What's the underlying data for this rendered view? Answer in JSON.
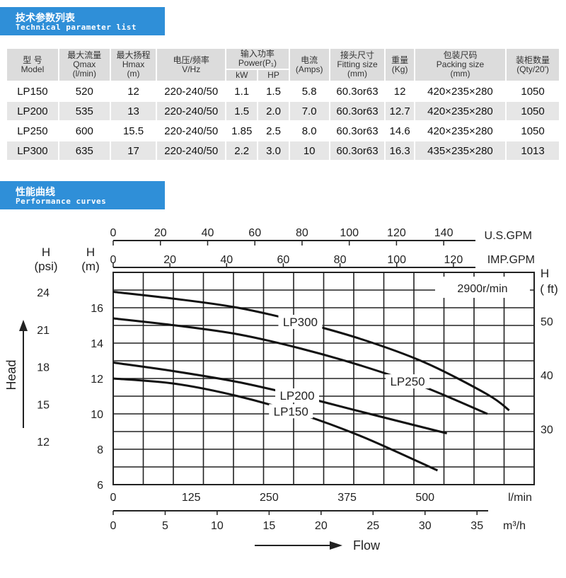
{
  "sections": {
    "tech": {
      "cn": "技术参数列表",
      "en": "Technical parameter list"
    },
    "perf": {
      "cn": "性能曲线",
      "en": "Performance curves"
    }
  },
  "table": {
    "headers": {
      "model": {
        "cn": "型 号",
        "en": "Model"
      },
      "qmax": {
        "cn": "最大流量",
        "l2": "Qmax",
        "l3": "(l/min)"
      },
      "hmax": {
        "cn": "最大扬程",
        "l2": "Hmax",
        "l3": "(m)"
      },
      "voltage": {
        "cn": "电压/频率",
        "en": "V/Hz"
      },
      "power": {
        "cn": "输入功率",
        "en": "Power(P₁)",
        "kw": "kW",
        "hp": "HP"
      },
      "current": {
        "cn": "电流",
        "en": "(Amps)"
      },
      "fitting": {
        "cn": "接头尺寸",
        "en": "Fitting size",
        "unit": "(mm)"
      },
      "weight": {
        "cn": "重量",
        "en": "(Kg)"
      },
      "packing": {
        "cn": "包装尺码",
        "en": "Packing size",
        "unit": "(mm)"
      },
      "container": {
        "cn": "装柜数量",
        "en": "(Qty/20')"
      }
    },
    "rows": [
      {
        "model": "LP150",
        "qmax": "520",
        "hmax": "12",
        "voltage": "220-240/50",
        "kw": "1.1",
        "hp": "1.5",
        "amps": "5.8",
        "fitting": "60.3or63",
        "kg": "12",
        "packing": "420×235×280",
        "qty": "1050"
      },
      {
        "model": "LP200",
        "qmax": "535",
        "hmax": "13",
        "voltage": "220-240/50",
        "kw": "1.5",
        "hp": "2.0",
        "amps": "7.0",
        "fitting": "60.3or63",
        "kg": "12.7",
        "packing": "420×235×280",
        "qty": "1050"
      },
      {
        "model": "LP250",
        "qmax": "600",
        "hmax": "15.5",
        "voltage": "220-240/50",
        "kw": "1.85",
        "hp": "2.5",
        "amps": "8.0",
        "fitting": "60.3or63",
        "kg": "14.6",
        "packing": "420×235×280",
        "qty": "1050"
      },
      {
        "model": "LP300",
        "qmax": "635",
        "hmax": "17",
        "voltage": "220-240/50",
        "kw": "2.2",
        "hp": "3.0",
        "amps": "10",
        "fitting": "60.3or63",
        "kg": "16.3",
        "packing": "435×235×280",
        "qty": "1013"
      }
    ]
  },
  "chart_data": {
    "type": "line",
    "annotation": "2900r/min",
    "x_label": "l/min",
    "xlim": [
      0,
      675
    ],
    "ylim": [
      6,
      18
    ],
    "grid": true,
    "x_ticks": [
      0,
      125,
      250,
      375,
      500
    ],
    "y_ticks_m": [
      6,
      8,
      10,
      12,
      14,
      16
    ],
    "y_label_m": [
      "H",
      "(m)"
    ],
    "y_label_psi": [
      "H",
      "(psi)"
    ],
    "y_label_ft": [
      "H",
      "( ft)"
    ],
    "psi_ticks": [
      12,
      15,
      18,
      21,
      24
    ],
    "ft_ticks": [
      30,
      40,
      50
    ],
    "usgpm_label": "U.S.GPM",
    "usgpm_ticks": [
      0,
      20,
      40,
      60,
      80,
      100,
      120,
      140
    ],
    "impgpm_label": "IMP.GPM",
    "impgpm_ticks": [
      0,
      20,
      40,
      60,
      80,
      100,
      120
    ],
    "m3h_label": "m³/h",
    "m3h_ticks": [
      0,
      5,
      10,
      15,
      20,
      25,
      30,
      35
    ],
    "axis_title_y": "Head",
    "axis_title_x": "Flow",
    "series": [
      {
        "name": "LP300",
        "x": [
          0,
          100,
          200,
          300,
          400,
          500,
          600,
          635
        ],
        "y": [
          16.9,
          16.5,
          16.0,
          15.2,
          14.2,
          12.9,
          11.1,
          10.2
        ]
      },
      {
        "name": "LP250",
        "x": [
          0,
          100,
          200,
          300,
          400,
          500,
          600
        ],
        "y": [
          15.4,
          15.0,
          14.5,
          13.7,
          12.7,
          11.5,
          10.0
        ]
      },
      {
        "name": "LP200",
        "x": [
          0,
          100,
          200,
          300,
          400,
          535
        ],
        "y": [
          12.9,
          12.4,
          11.8,
          11.0,
          10.1,
          8.9
        ]
      },
      {
        "name": "LP150",
        "x": [
          0,
          100,
          200,
          300,
          400,
          520
        ],
        "y": [
          12.0,
          11.7,
          11.0,
          10.0,
          8.7,
          6.8
        ]
      }
    ],
    "series_label_x": [
      300,
      472,
      295,
      285
    ]
  }
}
